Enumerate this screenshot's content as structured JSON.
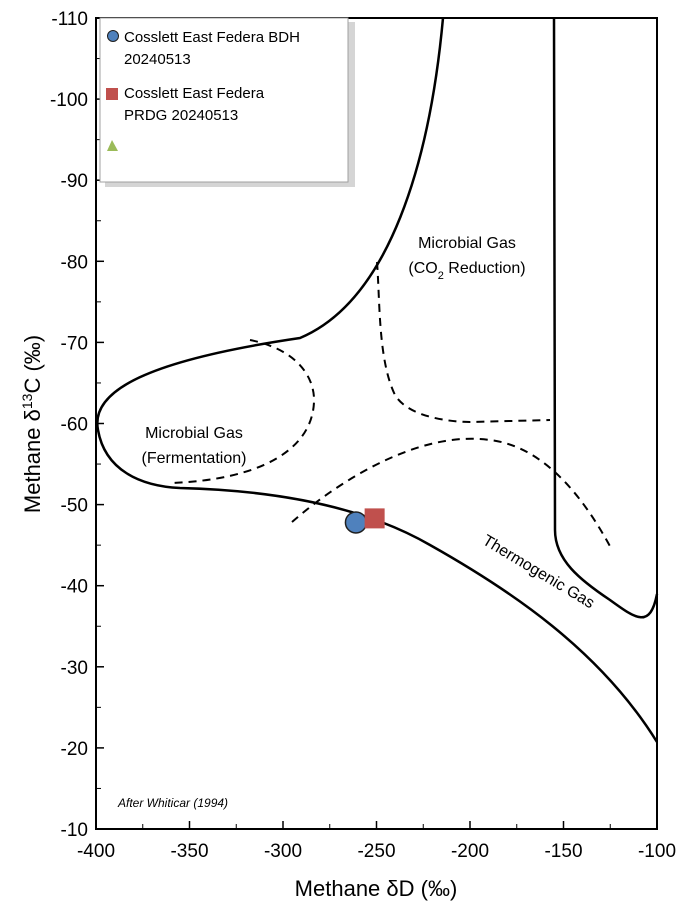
{
  "chart_data": {
    "type": "scatter",
    "xlabel_prefix": "Methane ",
    "xlabel_symbol": "δD (‰)",
    "ylabel_prefix": "Methane ",
    "ylabel_delta": "δ",
    "ylabel_sup": "13",
    "ylabel_suffix": "C (‰)",
    "xlim": [
      -400,
      -100
    ],
    "ylim": [
      -110,
      -10
    ],
    "x_ticks": [
      -400,
      -350,
      -300,
      -250,
      -200,
      -150,
      -100
    ],
    "y_ticks": [
      -110,
      -100,
      -90,
      -80,
      -70,
      -60,
      -50,
      -40,
      -30,
      -20,
      -10
    ],
    "grid": false,
    "legend_position": "top-left",
    "series": [
      {
        "name": "Cosslett East Federa BDH 20240513",
        "name_line1": "Cosslett East Federa BDH",
        "name_line2": "20240513",
        "marker": "circle",
        "color": "#4F81BD",
        "points": [
          {
            "x": -261,
            "y": -47.8
          }
        ]
      },
      {
        "name": "Cosslett East Federa PRDG 20240513",
        "name_line1": "Cosslett East Federa",
        "name_line2": "PRDG 20240513",
        "marker": "square",
        "color": "#C0504D",
        "points": [
          {
            "x": -251,
            "y": -48.3
          }
        ]
      },
      {
        "name": "",
        "marker": "triangle",
        "color": "#9BBB59",
        "points": []
      }
    ],
    "regions": [
      {
        "line1": "Microbial Gas",
        "line2": "(CO",
        "line2_sub": "2",
        "line2_tail": " Reduction)"
      },
      {
        "line1": "Microbial Gas",
        "line2": "(Fermentation)"
      },
      {
        "line1": "Thermogenic Gas"
      }
    ],
    "annotation": "After Whiticar (1994)"
  }
}
